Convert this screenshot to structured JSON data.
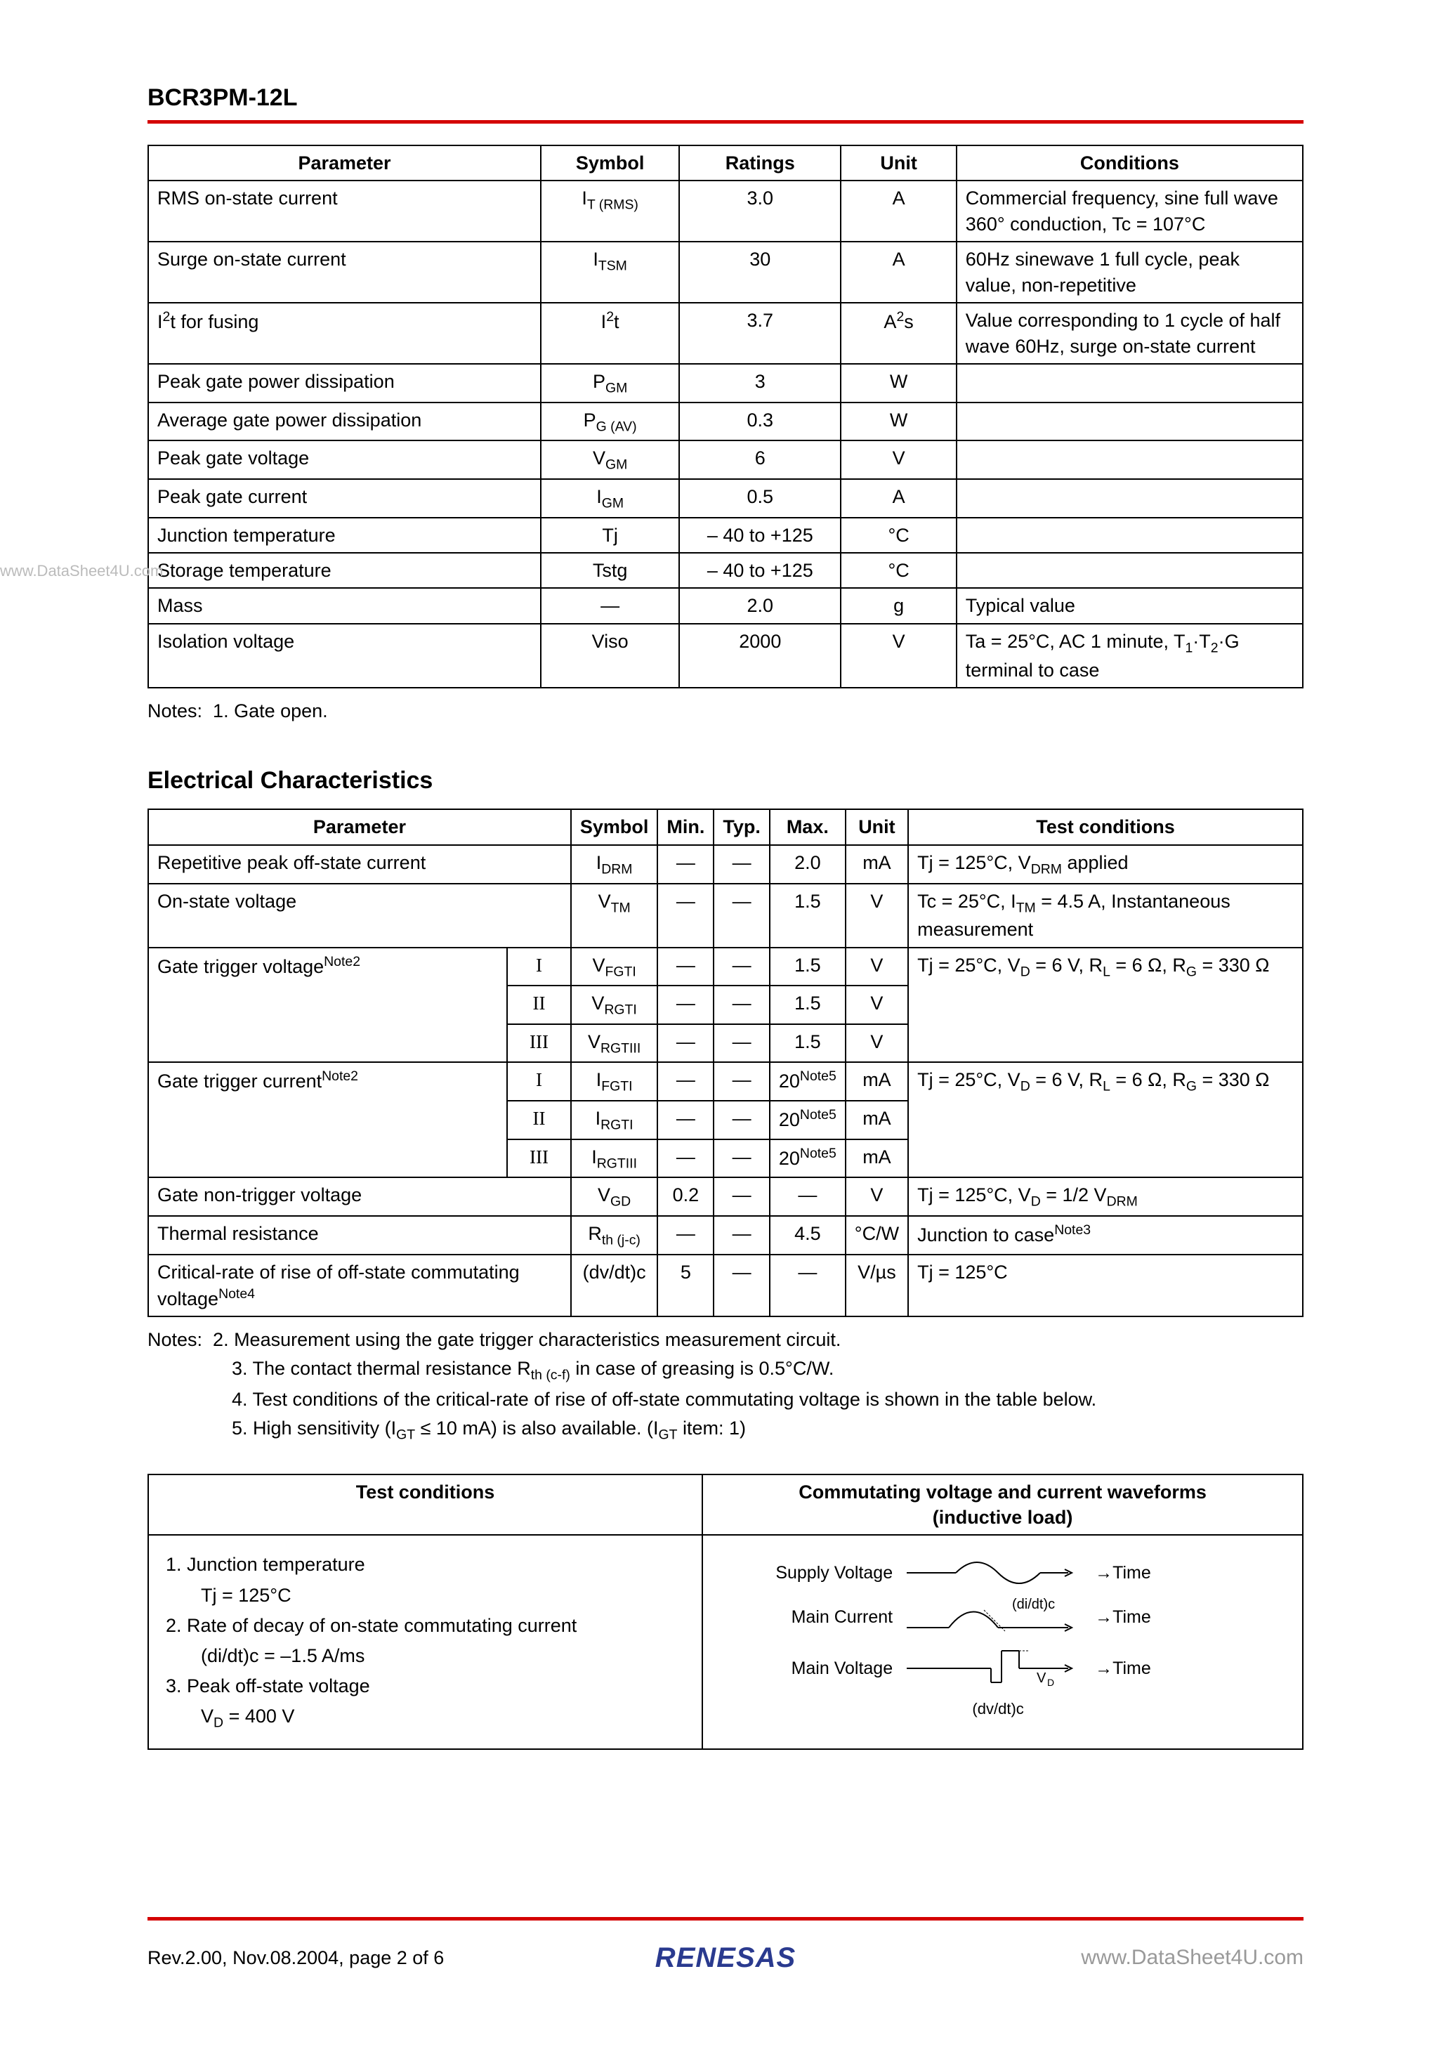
{
  "header": {
    "part_number": "BCR3PM-12L"
  },
  "watermark_left": "www.DataSheet4U.com",
  "table1": {
    "headers": [
      "Parameter",
      "Symbol",
      "Ratings",
      "Unit",
      "Conditions"
    ],
    "rows": [
      {
        "p": "RMS on-state current",
        "s": "I<sub>T (RMS)</sub>",
        "r": "3.0",
        "u": "A",
        "c": "Commercial frequency, sine full wave 360° conduction, Tc = 107°C"
      },
      {
        "p": "Surge on-state current",
        "s": "I<sub>TSM</sub>",
        "r": "30",
        "u": "A",
        "c": "60Hz sinewave 1 full cycle, peak value, non-repetitive"
      },
      {
        "p": "I<sup>2</sup>t for fusing",
        "s": "I<sup>2</sup>t",
        "r": "3.7",
        "u": "A<sup>2</sup>s",
        "c": "Value corresponding to 1 cycle of half wave 60Hz, surge on-state current"
      },
      {
        "p": "Peak gate power dissipation",
        "s": "P<sub>GM</sub>",
        "r": "3",
        "u": "W",
        "c": ""
      },
      {
        "p": "Average gate power dissipation",
        "s": "P<sub>G (AV)</sub>",
        "r": "0.3",
        "u": "W",
        "c": ""
      },
      {
        "p": "Peak gate voltage",
        "s": "V<sub>GM</sub>",
        "r": "6",
        "u": "V",
        "c": ""
      },
      {
        "p": "Peak gate current",
        "s": "I<sub>GM</sub>",
        "r": "0.5",
        "u": "A",
        "c": ""
      },
      {
        "p": "Junction temperature",
        "s": "Tj",
        "r": "– 40 to +125",
        "u": "°C",
        "c": ""
      },
      {
        "p": "Storage temperature",
        "s": "Tstg",
        "r": "– 40 to +125",
        "u": "°C",
        "c": ""
      },
      {
        "p": "Mass",
        "s": "—",
        "r": "2.0",
        "u": "g",
        "c": "Typical value"
      },
      {
        "p": "Isolation voltage",
        "s": "Viso",
        "r": "2000",
        "u": "V",
        "c": "Ta = 25°C, AC 1 minute, T<sub>1</sub>·T<sub>2</sub>·G terminal to case"
      }
    ]
  },
  "notes1": {
    "label": "Notes:",
    "items": [
      "1.  Gate open."
    ]
  },
  "section2_title": "Electrical Characteristics",
  "table2": {
    "headers": [
      "Parameter",
      "Symbol",
      "Min.",
      "Typ.",
      "Max.",
      "Unit",
      "Test conditions"
    ],
    "rows": [
      {
        "p": "Repetitive peak off-state current",
        "sub": "",
        "s": "I<sub>DRM</sub>",
        "min": "—",
        "typ": "—",
        "max": "2.0",
        "u": "mA",
        "c": "Tj = 125°C, V<sub>DRM</sub> applied"
      },
      {
        "p": "On-state voltage",
        "sub": "",
        "s": "V<sub>TM</sub>",
        "min": "—",
        "typ": "—",
        "max": "1.5",
        "u": "V",
        "c": "Tc = 25°C, I<sub>TM</sub> = 4.5 A, Instantaneous measurement"
      },
      {
        "p": "Gate trigger voltage<sup>Note2</sup>",
        "sub": "I",
        "s": "V<sub>FGTI</sub>",
        "min": "—",
        "typ": "—",
        "max": "1.5",
        "u": "V",
        "c": "Tj = 25°C, V<sub>D</sub> = 6 V, R<sub>L</sub> = 6 Ω, R<sub>G</sub> = 330 Ω",
        "rowspan_p": 3,
        "rowspan_c": 3
      },
      {
        "sub": "II",
        "s": "V<sub>RGTI</sub>",
        "min": "—",
        "typ": "—",
        "max": "1.5",
        "u": "V"
      },
      {
        "sub": "III",
        "s": "V<sub>RGTIII</sub>",
        "min": "—",
        "typ": "—",
        "max": "1.5",
        "u": "V"
      },
      {
        "p": "Gate trigger current<sup>Note2</sup>",
        "sub": "I",
        "s": "I<sub>FGTI</sub>",
        "min": "—",
        "typ": "—",
        "max": "20<sup>Note5</sup>",
        "u": "mA",
        "c": "Tj = 25°C, V<sub>D</sub> = 6 V, R<sub>L</sub> = 6 Ω, R<sub>G</sub> = 330 Ω",
        "rowspan_p": 3,
        "rowspan_c": 3
      },
      {
        "sub": "II",
        "s": "I<sub>RGTI</sub>",
        "min": "—",
        "typ": "—",
        "max": "20<sup>Note5</sup>",
        "u": "mA"
      },
      {
        "sub": "III",
        "s": "I<sub>RGTIII</sub>",
        "min": "—",
        "typ": "—",
        "max": "20<sup>Note5</sup>",
        "u": "mA"
      },
      {
        "p": "Gate non-trigger voltage",
        "sub": "",
        "s": "V<sub>GD</sub>",
        "min": "0.2",
        "typ": "—",
        "max": "—",
        "u": "V",
        "c": "Tj = 125°C, V<sub>D</sub> = 1/2 V<sub>DRM</sub>"
      },
      {
        "p": "Thermal resistance",
        "sub": "",
        "s": "R<sub>th (j-c)</sub>",
        "min": "—",
        "typ": "—",
        "max": "4.5",
        "u": "°C/W",
        "c": "Junction to case<sup>Note3</sup>"
      },
      {
        "p": "Critical-rate of rise of off-state commutating voltage<sup>Note4</sup>",
        "sub": "",
        "s": "(dv/dt)c",
        "min": "5",
        "typ": "—",
        "max": "—",
        "u": "V/µs",
        "c": "Tj = 125°C"
      }
    ]
  },
  "notes2": {
    "label": "Notes:",
    "items": [
      "2.  Measurement using the gate trigger characteristics measurement circuit.",
      "3.  The contact thermal resistance R<sub>th (c-f)</sub> in case of greasing is 0.5°C/W.",
      "4.  Test conditions of the critical-rate of rise of off-state commutating voltage is shown in the table below.",
      "5.  High sensitivity (I<sub>GT</sub> ≤ 10 mA) is also available. (I<sub>GT</sub> item: 1)"
    ]
  },
  "table3": {
    "h1": "Test conditions",
    "h2": "Commutating voltage and current waveforms (inductive load)",
    "tc_lines": [
      "1. Junction temperature",
      "    Tj = 125°C",
      "2. Rate of decay of on-state commutating current",
      "    (di/dt)c = –1.5 A/ms",
      "3. Peak off-state voltage",
      "    V<sub>D</sub> = 400 V"
    ],
    "wf": {
      "supply": "Supply Voltage",
      "main_current": "Main Current",
      "main_voltage": "Main Voltage",
      "time": "Time",
      "didt": "(di/dt)c",
      "dvdt": "(dv/dt)c",
      "vd": "V<sub>D</sub>"
    }
  },
  "footer": {
    "rev": "Rev.2.00,   Nov.08.2004,   page  2  of 6",
    "logo": "RENESAS",
    "url": "www.DataSheet4U.com"
  },
  "colors": {
    "rule": "#d40000",
    "logo": "#2a3a8f",
    "faded": "#999999"
  }
}
